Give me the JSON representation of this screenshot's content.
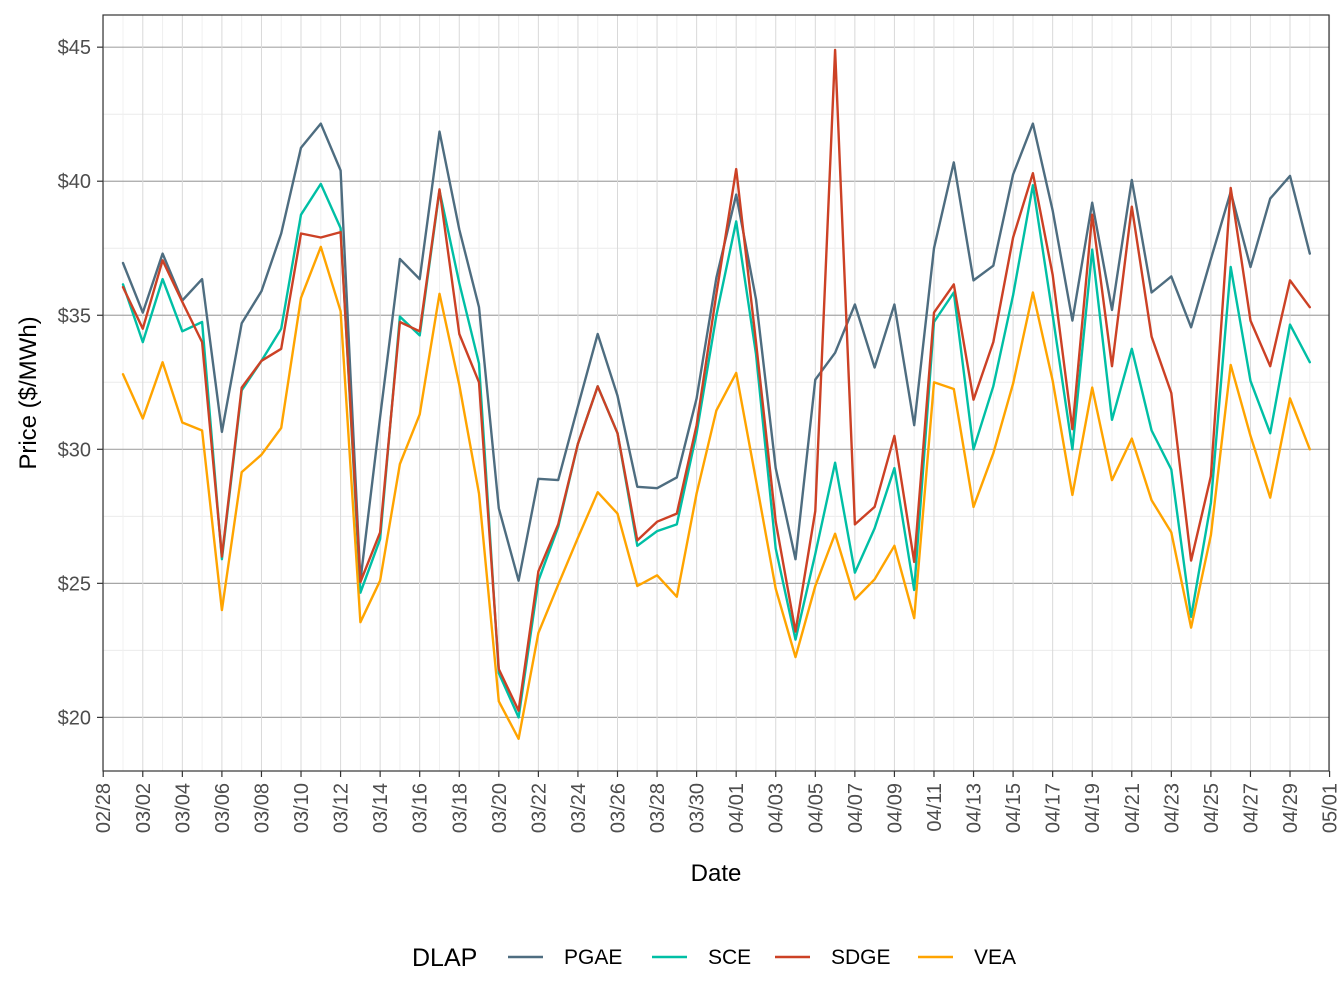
{
  "chart_data": {
    "type": "line",
    "xlabel": "Date",
    "ylabel": "Price ($/MWh)",
    "ylim": [
      18,
      46.2
    ],
    "y_ticks": [
      20,
      25,
      30,
      35,
      40,
      45
    ],
    "y_tick_labels": [
      "$20",
      "$25",
      "$30",
      "$35",
      "$40",
      "$45"
    ],
    "x_tick_labels": [
      "02/28",
      "03/02",
      "03/04",
      "03/06",
      "03/08",
      "03/10",
      "03/12",
      "03/14",
      "03/16",
      "03/18",
      "03/20",
      "03/22",
      "03/24",
      "03/26",
      "03/28",
      "03/30",
      "04/01",
      "04/03",
      "04/05",
      "04/07",
      "04/09",
      "04/11",
      "04/13",
      "04/15",
      "04/17",
      "04/19",
      "04/21",
      "04/23",
      "04/25",
      "04/27",
      "04/29",
      "05/01"
    ],
    "x_start": "2021-03-01",
    "grid": true,
    "legend": {
      "title": "DLAP",
      "position": "bottom"
    },
    "series": [
      {
        "name": "PGAE",
        "color": "#4e6d80",
        "values": [
          36.95,
          35.1,
          37.3,
          35.55,
          36.35,
          30.65,
          34.7,
          35.9,
          38.05,
          41.25,
          42.15,
          40.4,
          25.1,
          31.2,
          37.1,
          36.35,
          41.85,
          38.2,
          35.3,
          27.8,
          25.1,
          28.9,
          28.85,
          31.6,
          34.3,
          32.0,
          28.6,
          28.55,
          28.95,
          31.9,
          36.4,
          39.5,
          35.6,
          29.3,
          25.9,
          32.6,
          33.6,
          35.4,
          33.05,
          35.4,
          30.9,
          37.5,
          40.7,
          36.3,
          36.85,
          40.25,
          42.15,
          38.9,
          34.8,
          39.2,
          35.2,
          40.05,
          35.85,
          36.45,
          34.55,
          37.1,
          39.6,
          36.8,
          39.35,
          40.2,
          37.3
        ]
      },
      {
        "name": "SCE",
        "color": "#00bfa5",
        "values": [
          36.15,
          34.0,
          36.35,
          34.4,
          34.75,
          25.9,
          32.2,
          33.3,
          34.5,
          38.75,
          39.9,
          38.25,
          24.65,
          26.65,
          34.95,
          34.25,
          39.65,
          36.2,
          33.2,
          21.65,
          20.0,
          25.1,
          27.1,
          30.2,
          32.35,
          30.6,
          26.4,
          26.95,
          27.2,
          30.6,
          35.0,
          38.5,
          33.55,
          26.3,
          22.9,
          26.1,
          29.5,
          25.4,
          27.05,
          29.3,
          24.75,
          34.75,
          35.85,
          30.0,
          32.35,
          35.75,
          39.85,
          35.0,
          30.0,
          37.45,
          31.1,
          33.75,
          30.7,
          29.25,
          23.75,
          28.0,
          36.8,
          32.55,
          30.6,
          34.65,
          33.25
        ]
      },
      {
        "name": "SDGE",
        "color": "#cc4125",
        "values": [
          36.05,
          34.5,
          37.05,
          35.5,
          34.0,
          26.0,
          32.3,
          33.3,
          33.75,
          38.05,
          37.9,
          38.1,
          25.05,
          26.9,
          34.75,
          34.4,
          39.7,
          34.3,
          32.5,
          21.8,
          20.25,
          25.45,
          27.2,
          30.2,
          32.35,
          30.6,
          26.6,
          27.3,
          27.6,
          30.9,
          35.8,
          40.45,
          34.0,
          27.3,
          23.2,
          27.7,
          44.9,
          27.2,
          27.85,
          30.5,
          25.8,
          35.1,
          36.15,
          31.85,
          34.0,
          37.9,
          40.3,
          36.5,
          30.75,
          38.75,
          33.1,
          39.05,
          34.2,
          32.1,
          25.85,
          29.0,
          39.75,
          34.8,
          33.1,
          36.3,
          35.3
        ]
      },
      {
        "name": "VEA",
        "color": "#ffa400",
        "values": [
          32.8,
          31.15,
          33.25,
          31.0,
          30.7,
          24.0,
          29.15,
          29.8,
          30.8,
          35.65,
          37.55,
          35.15,
          23.55,
          25.1,
          29.45,
          31.3,
          35.8,
          32.4,
          28.35,
          20.6,
          19.2,
          23.15,
          24.95,
          26.7,
          28.4,
          27.6,
          24.9,
          25.3,
          24.5,
          28.35,
          31.45,
          32.85,
          28.85,
          24.8,
          22.25,
          24.9,
          26.85,
          24.4,
          25.15,
          26.4,
          23.7,
          32.5,
          32.25,
          27.85,
          29.85,
          32.45,
          35.85,
          32.55,
          28.3,
          32.3,
          28.85,
          30.4,
          28.1,
          26.9,
          23.35,
          26.8,
          33.15,
          30.5,
          28.2,
          31.9,
          30.0
        ]
      }
    ]
  }
}
